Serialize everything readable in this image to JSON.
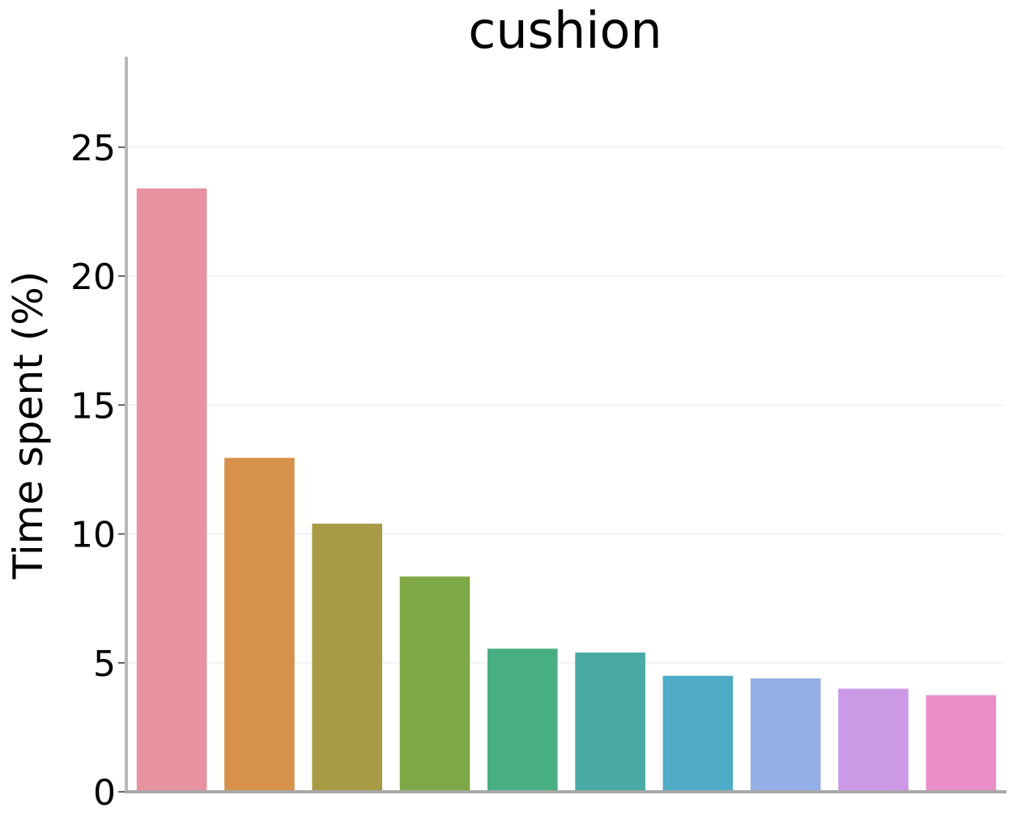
{
  "chart_data": {
    "type": "bar",
    "title": "cushion",
    "xlabel": "",
    "ylabel": "Time spent (%)",
    "ylim": [
      0,
      28.5
    ],
    "yticks": [
      0,
      5,
      10,
      15,
      20,
      25
    ],
    "ytick_labels": [
      "0",
      "5",
      "10",
      "15",
      "20",
      "25"
    ],
    "grid": "horizontal",
    "legend": "none",
    "bars": [
      {
        "value": 23.4,
        "color": "#e8929f"
      },
      {
        "value": 12.95,
        "color": "#d6924b"
      },
      {
        "value": 10.4,
        "color": "#a89b45"
      },
      {
        "value": 8.35,
        "color": "#7fa846"
      },
      {
        "value": 5.55,
        "color": "#48af83"
      },
      {
        "value": 5.4,
        "color": "#49aaa5"
      },
      {
        "value": 4.5,
        "color": "#4fabc6"
      },
      {
        "value": 4.4,
        "color": "#94aee6"
      },
      {
        "value": 4.0,
        "color": "#cc99e6"
      },
      {
        "value": 3.75,
        "color": "#ea8ec9"
      }
    ]
  }
}
